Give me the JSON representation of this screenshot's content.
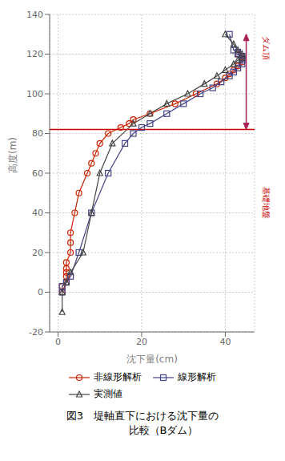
{
  "chart_data": {
    "type": "line",
    "title": "図3　堤軸直下における沈下量の\n　　　　比較（Bダム）",
    "xlabel": "沈下量(cm)",
    "ylabel": "高度(m)",
    "xlim": [
      -2,
      47
    ],
    "ylim": [
      -20,
      140
    ],
    "xticks": [
      0,
      20,
      40
    ],
    "yticks": [
      -20,
      0,
      20,
      40,
      60,
      80,
      100,
      120,
      140
    ],
    "grid": true,
    "legend": "bottom",
    "series": [
      {
        "name": "非線形解析",
        "color": "#cc2200",
        "marker": "circle",
        "x": [
          1,
          1,
          2,
          2,
          2,
          2,
          2,
          3,
          3,
          3,
          4,
          5,
          7,
          8,
          9,
          10,
          12,
          15,
          17,
          18,
          22,
          28,
          33,
          38,
          40,
          41,
          42,
          43,
          44,
          44,
          44,
          43,
          43
        ],
        "values": [
          0,
          3,
          5,
          8,
          10,
          12,
          15,
          20,
          25,
          30,
          40,
          50,
          60,
          65,
          70,
          75,
          80,
          83,
          85,
          87,
          90,
          95,
          100,
          105,
          108,
          110,
          112,
          114,
          116,
          118,
          119,
          120,
          120
        ]
      },
      {
        "name": "線形解析",
        "color": "#444488",
        "marker": "square",
        "x": [
          1,
          1,
          2,
          3,
          5,
          8,
          12,
          16,
          18,
          20,
          22,
          26,
          30,
          34,
          37,
          39,
          41,
          42,
          43,
          44,
          44,
          44,
          44,
          43,
          43,
          42,
          41
        ],
        "values": [
          0,
          3,
          5,
          8,
          20,
          40,
          60,
          75,
          80,
          83,
          85,
          90,
          95,
          100,
          103,
          106,
          109,
          111,
          113,
          115,
          117,
          118,
          119,
          120,
          121,
          122,
          130
        ]
      },
      {
        "name": "実測値",
        "color": "#444444",
        "marker": "triangle",
        "x": [
          1,
          1,
          2,
          3,
          6,
          8,
          10,
          13,
          18,
          22,
          26,
          31,
          35,
          38,
          40,
          42,
          43,
          44,
          44,
          43,
          42,
          40
        ],
        "values": [
          -10,
          0,
          5,
          10,
          20,
          40,
          60,
          75,
          85,
          90,
          95,
          100,
          105,
          109,
          112,
          115,
          117,
          118,
          120,
          122,
          125,
          130
        ]
      }
    ],
    "reference_line": {
      "y": 82,
      "color": "#cc0000"
    },
    "arrow": {
      "x": 45,
      "y_from": 130,
      "y_to": 82,
      "color": "#aa2255"
    },
    "annotations": [
      {
        "text": "ダム頂",
        "y": 123,
        "color": "#cc0000"
      },
      {
        "text": "基礎地盤",
        "y": 45,
        "color": "#cc0000"
      }
    ]
  }
}
